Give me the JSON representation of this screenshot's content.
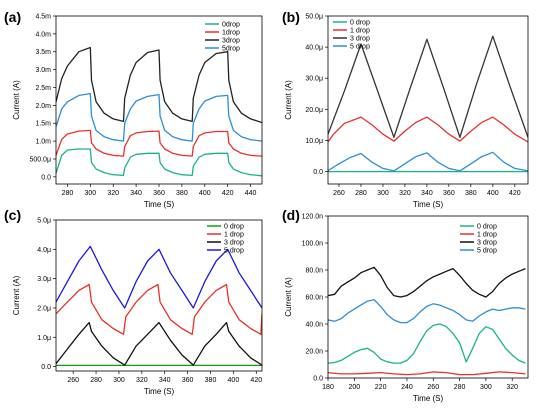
{
  "chart_data": [
    {
      "panel": "(a)",
      "type": "line",
      "xlabel": "Time (S)",
      "ylabel": "Current (A)",
      "xlim": [
        270,
        450
      ],
      "ylim": [
        -0.0002,
        0.0045
      ],
      "xticks": [
        280,
        300,
        320,
        340,
        360,
        380,
        400,
        420,
        440
      ],
      "xtick_labels": [
        "280",
        "300",
        "320",
        "340",
        "360",
        "380",
        "400",
        "420",
        "440"
      ],
      "yticks": [
        0,
        0.0005,
        0.001,
        0.0015,
        0.002,
        0.0025,
        0.003,
        0.0035,
        0.004,
        0.0045
      ],
      "ytick_labels": [
        "0.0",
        "500.0μ",
        "1.0m",
        "1.5m",
        "2.0m",
        "2.5m",
        "3.0m",
        "3.5m",
        "4.0m",
        "4.5m"
      ],
      "legend_position": "top-right",
      "series": [
        {
          "name": "0drop",
          "color": "#18b48c",
          "x": [
            270,
            275,
            280,
            290,
            300,
            301,
            305,
            312,
            320,
            329,
            330,
            335,
            340,
            350,
            360,
            361,
            365,
            372,
            380,
            389,
            390,
            395,
            400,
            410,
            420,
            421,
            425,
            432,
            440,
            450
          ],
          "y": [
            0.0001,
            0.0006,
            0.00075,
            0.00078,
            0.00078,
            0.0004,
            0.00022,
            0.00012,
            6e-05,
            4e-05,
            0.00025,
            0.00055,
            0.00063,
            0.00066,
            0.00066,
            0.0004,
            0.00022,
            0.00012,
            6e-05,
            4e-05,
            0.0003,
            0.00055,
            0.00063,
            0.00066,
            0.00066,
            0.0004,
            0.00022,
            0.00012,
            6e-05,
            3e-05
          ]
        },
        {
          "name": "1drop",
          "color": "#e8312a",
          "x": [
            270,
            275,
            280,
            290,
            300,
            301,
            305,
            312,
            320,
            329,
            330,
            335,
            340,
            350,
            360,
            361,
            365,
            372,
            380,
            389,
            390,
            395,
            400,
            410,
            420,
            421,
            425,
            432,
            440,
            450
          ],
          "y": [
            0.0006,
            0.00105,
            0.0012,
            0.00128,
            0.0013,
            0.00095,
            0.00078,
            0.00066,
            0.0006,
            0.00058,
            0.00085,
            0.00115,
            0.00123,
            0.00127,
            0.00128,
            0.00095,
            0.00078,
            0.00066,
            0.0006,
            0.00058,
            0.00085,
            0.00115,
            0.00123,
            0.00127,
            0.00127,
            0.00095,
            0.00078,
            0.00066,
            0.0006,
            0.00058
          ]
        },
        {
          "name": "3drop",
          "color": "#222222",
          "x": [
            270,
            275,
            280,
            290,
            300,
            301,
            305,
            312,
            320,
            329,
            330,
            335,
            340,
            350,
            360,
            361,
            365,
            372,
            380,
            389,
            390,
            395,
            400,
            410,
            420,
            421,
            425,
            432,
            440,
            450
          ],
          "y": [
            0.0021,
            0.00275,
            0.0031,
            0.0035,
            0.00362,
            0.0027,
            0.0021,
            0.00178,
            0.00162,
            0.00155,
            0.0022,
            0.00285,
            0.0032,
            0.00348,
            0.00355,
            0.0027,
            0.0021,
            0.00178,
            0.00162,
            0.00155,
            0.0022,
            0.00285,
            0.0032,
            0.00345,
            0.0035,
            0.0027,
            0.0021,
            0.00178,
            0.00162,
            0.00152
          ]
        },
        {
          "name": "5drop",
          "color": "#2b8fd8",
          "x": [
            270,
            275,
            280,
            290,
            300,
            301,
            305,
            312,
            320,
            329,
            330,
            335,
            340,
            350,
            360,
            361,
            365,
            372,
            380,
            389,
            390,
            395,
            400,
            410,
            420,
            421,
            425,
            432,
            440,
            450
          ],
          "y": [
            0.0014,
            0.0019,
            0.0021,
            0.00228,
            0.00233,
            0.0017,
            0.0013,
            0.00112,
            0.00104,
            0.001,
            0.0015,
            0.0019,
            0.00212,
            0.00225,
            0.0023,
            0.0017,
            0.0013,
            0.00112,
            0.00104,
            0.001,
            0.0015,
            0.0019,
            0.00212,
            0.00225,
            0.00228,
            0.0017,
            0.0013,
            0.00112,
            0.00104,
            0.001
          ]
        }
      ]
    },
    {
      "panel": "(b)",
      "type": "line",
      "xlabel": "Time (S)",
      "ylabel": "Current (A)",
      "xlim": [
        250,
        432
      ],
      "ylim": [
        -4e-06,
        5e-05
      ],
      "xticks": [
        260,
        280,
        300,
        320,
        340,
        360,
        380,
        400,
        420
      ],
      "xtick_labels": [
        "260",
        "280",
        "300",
        "320",
        "340",
        "360",
        "380",
        "400",
        "420"
      ],
      "yticks": [
        0,
        1e-05,
        2e-05,
        3e-05,
        4e-05,
        5e-05
      ],
      "ytick_labels": [
        "0.0",
        "10.0μ",
        "20.0μ",
        "30.0μ",
        "40.0μ",
        "50.0μ"
      ],
      "legend_position": "top-left",
      "series": [
        {
          "name": "0 drop",
          "color": "#18b48c",
          "x": [
            250,
            280,
            310,
            340,
            370,
            400,
            432
          ],
          "y": [
            0,
            0,
            0,
            0,
            0,
            0,
            0
          ]
        },
        {
          "name": "1 drop",
          "color": "#e8312a",
          "x": [
            250,
            255,
            265,
            280,
            290,
            300,
            310,
            320,
            330,
            340,
            350,
            360,
            370,
            380,
            390,
            400,
            410,
            420,
            432
          ],
          "y": [
            9.5e-06,
            1.2e-05,
            1.55e-05,
            1.75e-05,
            1.5e-05,
            1.2e-05,
            9.8e-06,
            1.3e-05,
            1.58e-05,
            1.75e-05,
            1.5e-05,
            1.2e-05,
            9.8e-06,
            1.3e-05,
            1.58e-05,
            1.75e-05,
            1.5e-05,
            1.2e-05,
            9.5e-06
          ]
        },
        {
          "name": "3 drop",
          "color": "#333333",
          "x": [
            250,
            265,
            280,
            295,
            310,
            325,
            340,
            355,
            370,
            385,
            400,
            415,
            432
          ],
          "y": [
            1.2e-05,
            2.6e-05,
            4.1e-05,
            2.6e-05,
            1.1e-05,
            2.7e-05,
            4.25e-05,
            2.7e-05,
            1.1e-05,
            2.8e-05,
            4.35e-05,
            2.8e-05,
            1.1e-05
          ]
        },
        {
          "name": "5 drop",
          "color": "#2b8fd8",
          "x": [
            250,
            260,
            270,
            280,
            290,
            300,
            310,
            320,
            330,
            340,
            350,
            360,
            370,
            380,
            390,
            400,
            410,
            420,
            432
          ],
          "y": [
            3e-07,
            2.5e-06,
            4.5e-06,
            5.8e-06,
            3e-06,
            1e-06,
            2e-07,
            2.5e-06,
            4.8e-06,
            6e-06,
            3e-06,
            1e-06,
            2e-07,
            2.5e-06,
            4.8e-06,
            6.2e-06,
            3e-06,
            1e-06,
            2e-07
          ]
        }
      ]
    },
    {
      "panel": "(c)",
      "type": "line",
      "xlabel": "Time (S)",
      "ylabel": "Current (A)",
      "xlim": [
        245,
        425
      ],
      "ylim": [
        -1.5e-07,
        5e-06
      ],
      "xticks": [
        260,
        280,
        300,
        320,
        340,
        360,
        380,
        400,
        420
      ],
      "xtick_labels": [
        "260",
        "280",
        "300",
        "320",
        "340",
        "360",
        "380",
        "400",
        "420"
      ],
      "yticks": [
        0,
        1e-06,
        2e-06,
        3e-06,
        4e-06,
        5e-06
      ],
      "ytick_labels": [
        "0.0",
        "1.0μ",
        "2.0μ",
        "3.0μ",
        "4.0μ",
        "5.0μ"
      ],
      "legend_position": "top-right",
      "series": [
        {
          "name": "0 drop",
          "color": "#0ca40c",
          "x": [
            245,
            300,
            360,
            425
          ],
          "y": [
            4e-08,
            4e-08,
            4e-08,
            4e-08
          ]
        },
        {
          "name": "1 drop",
          "color": "#e8312a",
          "x": [
            245,
            255,
            265,
            274,
            276,
            285,
            295,
            304,
            306,
            315,
            325,
            334,
            336,
            345,
            355,
            364,
            366,
            375,
            385,
            394,
            396,
            405,
            415,
            424,
            425
          ],
          "y": [
            1.8e-06,
            2.2e-06,
            2.6e-06,
            2.8e-06,
            2.2e-06,
            1.6e-06,
            1.3e-06,
            1.1e-06,
            1.7e-06,
            2.2e-06,
            2.6e-06,
            2.8e-06,
            2.2e-06,
            1.6e-06,
            1.3e-06,
            1.1e-06,
            1.7e-06,
            2.2e-06,
            2.6e-06,
            2.8e-06,
            2.2e-06,
            1.6e-06,
            1.3e-06,
            1.1e-06,
            1.8e-06
          ]
        },
        {
          "name": "3 drop",
          "color": "#111111",
          "x": [
            245,
            255,
            265,
            274,
            276,
            285,
            295,
            305,
            315,
            325,
            335,
            345,
            355,
            365,
            375,
            385,
            394,
            396,
            405,
            415,
            425
          ],
          "y": [
            1e-07,
            6e-07,
            1.1e-06,
            1.5e-06,
            1.2e-06,
            7e-07,
            3e-07,
            5e-08,
            7e-07,
            1.1e-06,
            1.5e-06,
            9e-07,
            4e-07,
            5e-08,
            7e-07,
            1.1e-06,
            1.5e-06,
            1.2e-06,
            7e-07,
            3e-07,
            5e-08
          ]
        },
        {
          "name": "5 drop",
          "color": "#1a1ae0",
          "x": [
            245,
            255,
            265,
            275,
            285,
            295,
            305,
            315,
            325,
            335,
            345,
            355,
            365,
            375,
            385,
            395,
            405,
            415,
            425
          ],
          "y": [
            2.2e-06,
            2.9e-06,
            3.6e-06,
            4.1e-06,
            3.3e-06,
            2.6e-06,
            2e-06,
            2.9e-06,
            3.6e-06,
            4e-06,
            3.2e-06,
            2.6e-06,
            2e-06,
            2.9e-06,
            3.6e-06,
            4e-06,
            3.2e-06,
            2.6e-06,
            2e-06
          ]
        }
      ]
    },
    {
      "panel": "(d)",
      "type": "line",
      "xlabel": "Time (S)",
      "ylabel": "Current (A)",
      "xlim": [
        180,
        332
      ],
      "ylim": [
        0,
        1.2e-07
      ],
      "xticks": [
        180,
        200,
        220,
        240,
        260,
        280,
        300,
        320
      ],
      "xtick_labels": [
        "180",
        "200",
        "220",
        "240",
        "260",
        "280",
        "300",
        "320"
      ],
      "yticks": [
        0,
        2e-08,
        4e-08,
        6e-08,
        8e-08,
        1e-07,
        1.2e-07
      ],
      "ytick_labels": [
        "0.0",
        "20.0n",
        "40.0n",
        "60.0n",
        "80.0n",
        "100.0n",
        "120.0n"
      ],
      "legend_position": "top-right",
      "series": [
        {
          "name": "0 drop",
          "color": "#18b48c",
          "x": [
            180,
            185,
            190,
            195,
            200,
            205,
            210,
            215,
            220,
            225,
            230,
            235,
            240,
            245,
            250,
            255,
            260,
            265,
            270,
            275,
            280,
            285,
            290,
            295,
            300,
            305,
            310,
            315,
            320,
            325,
            330
          ],
          "y": [
            1.1e-08,
            1.15e-08,
            1.3e-08,
            1.6e-08,
            1.9e-08,
            2.1e-08,
            2.2e-08,
            1.9e-08,
            1.4e-08,
            1.2e-08,
            1.1e-08,
            1.1e-08,
            1.3e-08,
            1.8e-08,
            2.7e-08,
            3.5e-08,
            3.9e-08,
            4e-08,
            3.8e-08,
            3.3e-08,
            2.6e-08,
            1.2e-08,
            2.2e-08,
            3.3e-08,
            3.8e-08,
            3.6e-08,
            2.9e-08,
            2.2e-08,
            1.7e-08,
            1.3e-08,
            1.1e-08
          ]
        },
        {
          "name": "1 drop",
          "color": "#e8312a",
          "x": [
            180,
            190,
            200,
            210,
            220,
            230,
            240,
            250,
            260,
            270,
            280,
            290,
            300,
            310,
            320,
            330
          ],
          "y": [
            4e-09,
            3e-09,
            3e-09,
            3.5e-09,
            4e-09,
            3e-09,
            2.5e-09,
            3e-09,
            4.5e-09,
            4e-09,
            2.5e-09,
            2.5e-09,
            3.5e-09,
            4.5e-09,
            4e-09,
            3e-09
          ]
        },
        {
          "name": "3 drop",
          "color": "#111111",
          "x": [
            180,
            185,
            190,
            195,
            200,
            205,
            210,
            215,
            220,
            225,
            230,
            235,
            240,
            245,
            250,
            255,
            260,
            265,
            270,
            275,
            280,
            285,
            290,
            295,
            300,
            305,
            310,
            315,
            320,
            325,
            330
          ],
          "y": [
            6.1e-08,
            6.2e-08,
            6.8e-08,
            7.1e-08,
            7.4e-08,
            7.8e-08,
            8e-08,
            8.2e-08,
            7.6e-08,
            6.7e-08,
            6.1e-08,
            6e-08,
            6.1e-08,
            6.4e-08,
            6.8e-08,
            7.2e-08,
            7.5e-08,
            7.7e-08,
            7.9e-08,
            8.1e-08,
            7.6e-08,
            7e-08,
            6.5e-08,
            6.2e-08,
            6e-08,
            6.4e-08,
            7e-08,
            7.4e-08,
            7.7e-08,
            7.9e-08,
            8.1e-08
          ]
        },
        {
          "name": "5 drop",
          "color": "#2b8fd8",
          "x": [
            180,
            185,
            190,
            195,
            200,
            205,
            210,
            215,
            220,
            225,
            230,
            235,
            240,
            245,
            250,
            255,
            260,
            265,
            270,
            275,
            280,
            285,
            290,
            295,
            300,
            305,
            310,
            315,
            320,
            325,
            330
          ],
          "y": [
            4.3e-08,
            4.2e-08,
            4.4e-08,
            4.8e-08,
            5.1e-08,
            5.4e-08,
            5.7e-08,
            5.8e-08,
            5.3e-08,
            4.7e-08,
            4.3e-08,
            4.1e-08,
            4.1e-08,
            4.4e-08,
            4.9e-08,
            5.3e-08,
            5.5e-08,
            5.4e-08,
            5.2e-08,
            5e-08,
            4.7e-08,
            4.3e-08,
            4.2e-08,
            4.6e-08,
            4.9e-08,
            5.1e-08,
            5e-08,
            5.1e-08,
            5.2e-08,
            5.2e-08,
            5.1e-08
          ]
        }
      ]
    }
  ]
}
